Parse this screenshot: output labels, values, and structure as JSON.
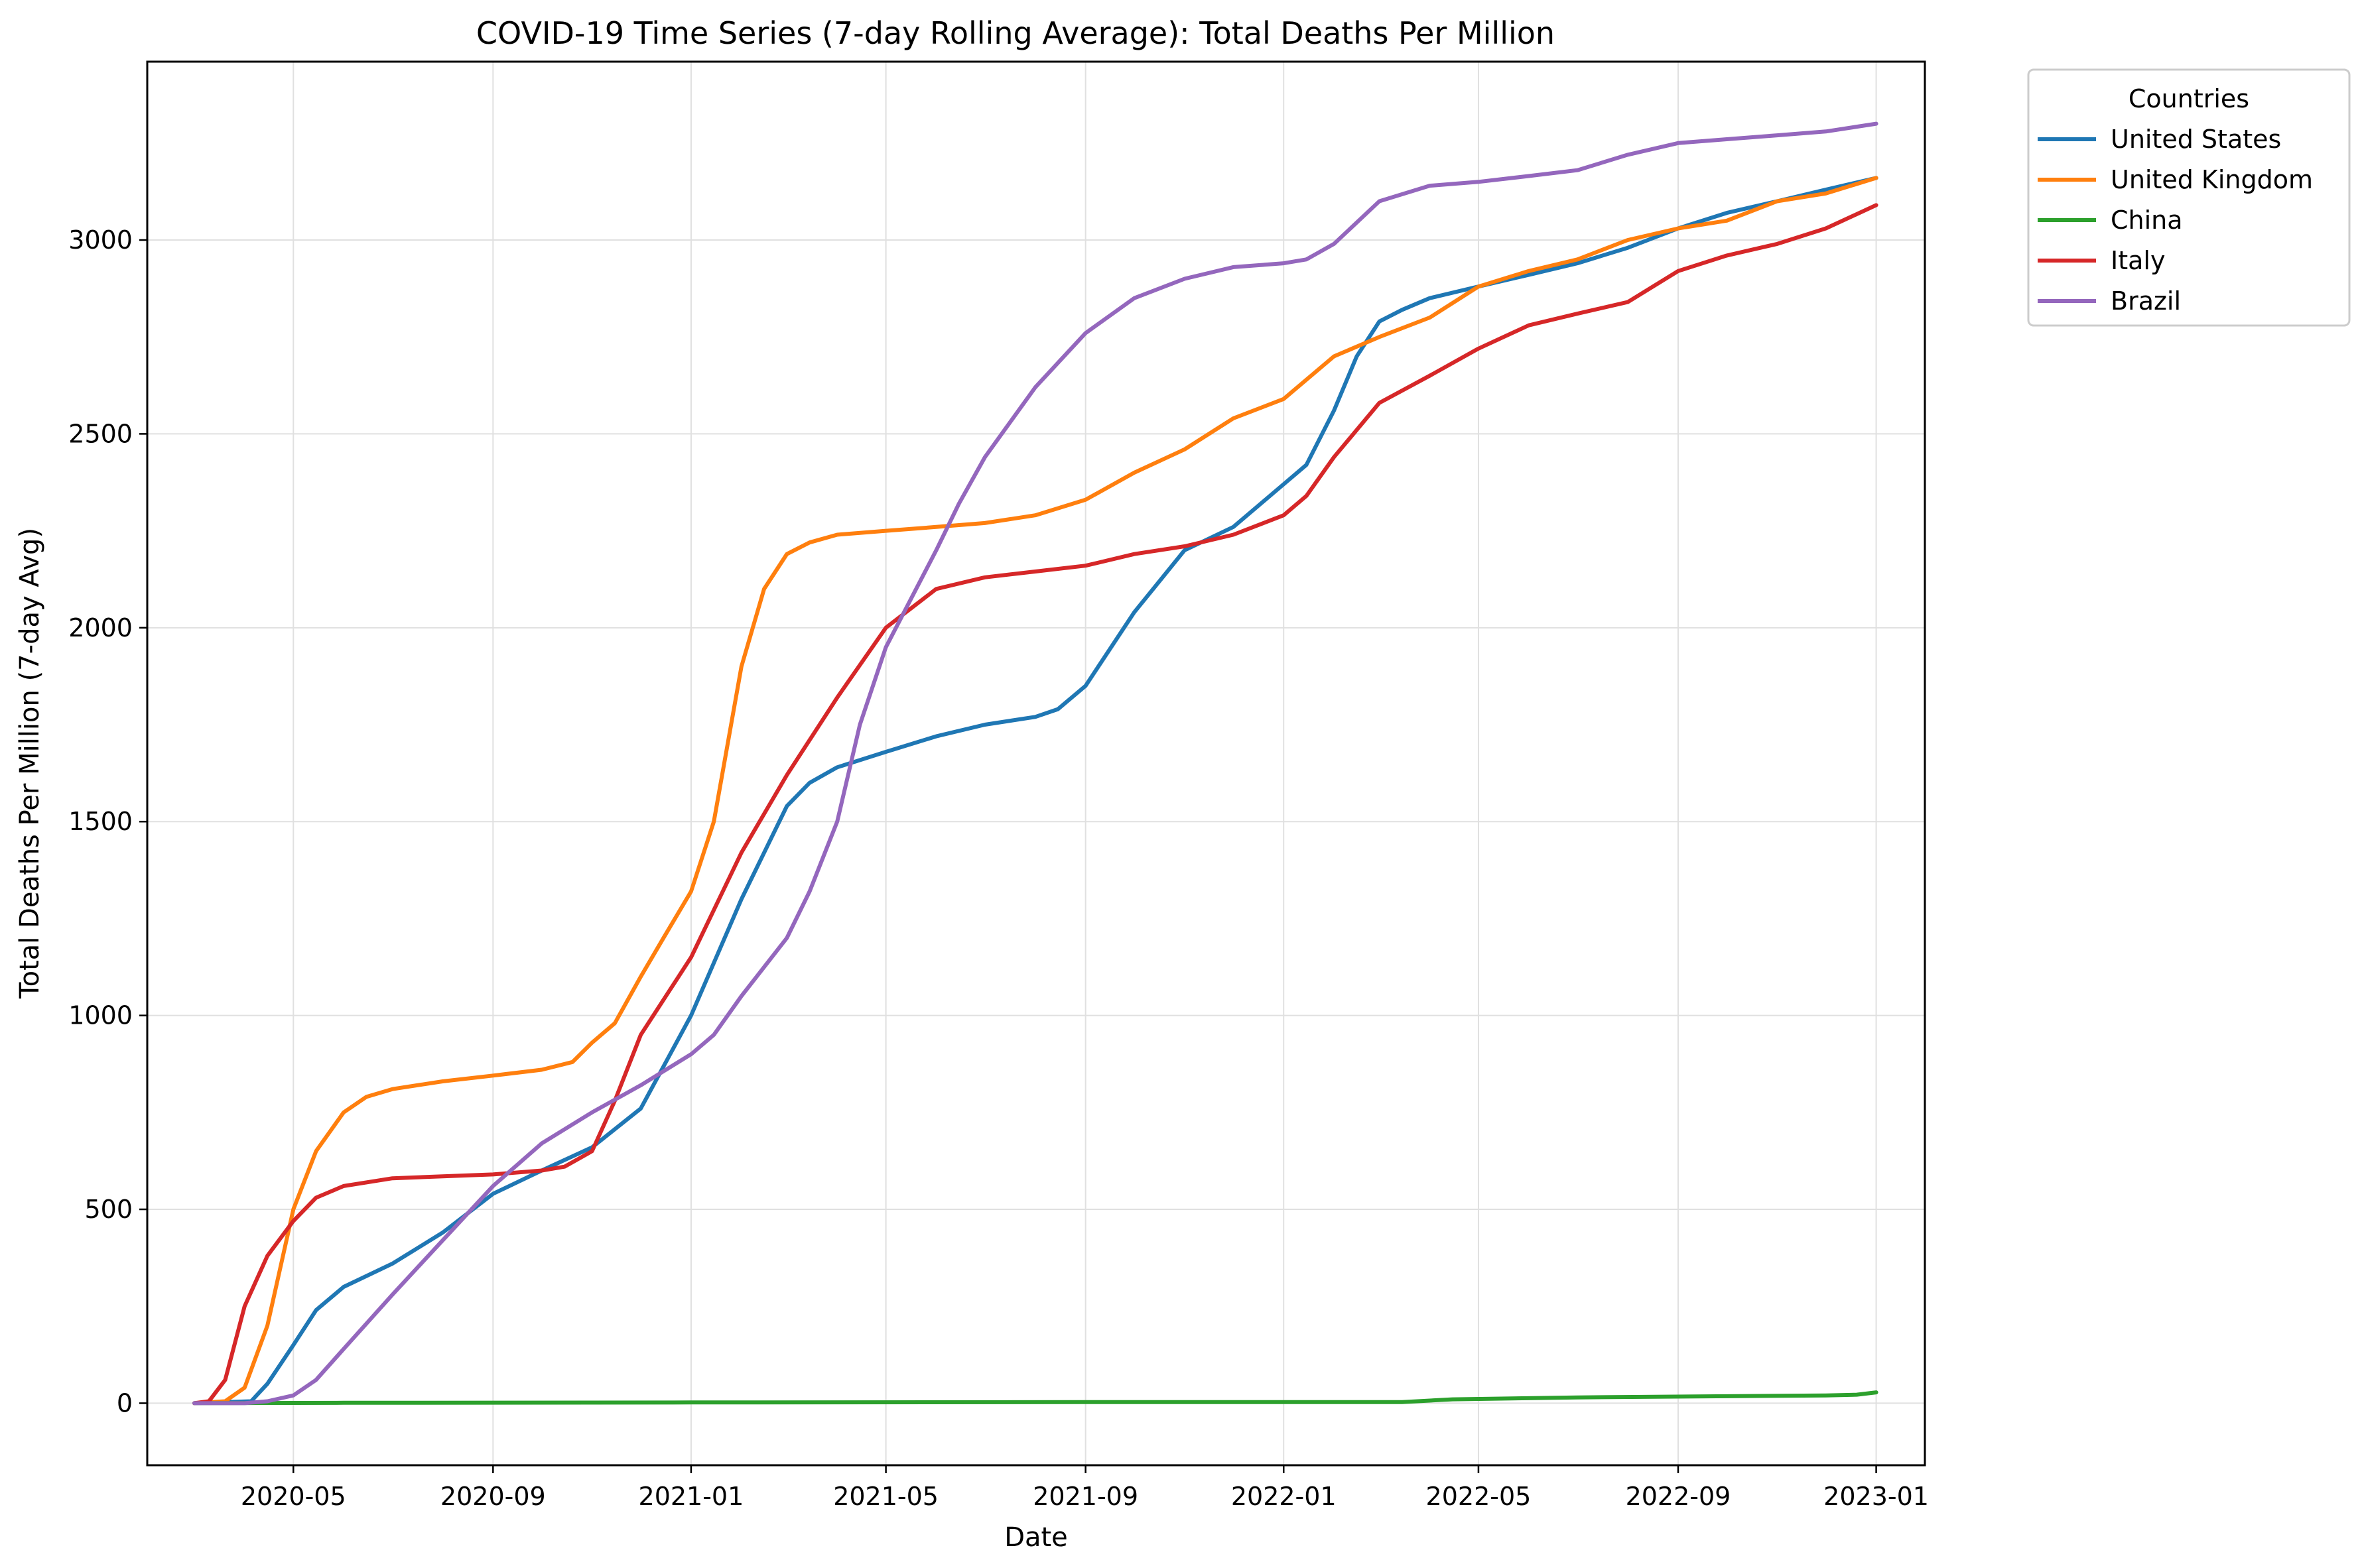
{
  "chart_data": {
    "type": "line",
    "title": "COVID-19 Time Series (7-day Rolling Average): Total Deaths Per Million",
    "xlabel": "Date",
    "ylabel": "Total Deaths Per Million (7-day Avg)",
    "ylim": [
      -160,
      3460
    ],
    "xlim": [
      "2020-02-01",
      "2023-01-31"
    ],
    "grid": true,
    "x_ticks": [
      "2020-05",
      "2020-09",
      "2021-01",
      "2021-05",
      "2021-09",
      "2022-01",
      "2022-05",
      "2022-09",
      "2023-01"
    ],
    "y_ticks": [
      0,
      500,
      1000,
      1500,
      2000,
      2500,
      3000
    ],
    "legend": {
      "title": "Countries",
      "position": "outside-top-right"
    },
    "series": [
      {
        "name": "United States",
        "color": "#1f77b4",
        "x": [
          "2020-03-01",
          "2020-04-05",
          "2020-04-15",
          "2020-05-01",
          "2020-05-15",
          "2020-06-01",
          "2020-07-01",
          "2020-08-01",
          "2020-09-01",
          "2020-10-01",
          "2020-11-01",
          "2020-12-01",
          "2021-01-01",
          "2021-02-01",
          "2021-03-01",
          "2021-03-15",
          "2021-04-01",
          "2021-05-01",
          "2021-06-01",
          "2021-07-01",
          "2021-08-01",
          "2021-08-15",
          "2021-09-01",
          "2021-10-01",
          "2021-11-01",
          "2021-12-01",
          "2022-01-01",
          "2022-01-15",
          "2022-02-01",
          "2022-02-15",
          "2022-03-01",
          "2022-03-15",
          "2022-04-01",
          "2022-05-01",
          "2022-06-01",
          "2022-07-01",
          "2022-08-01",
          "2022-09-01",
          "2022-10-01",
          "2022-11-01",
          "2022-12-01",
          "2023-01-01"
        ],
        "y": [
          0,
          5,
          50,
          150,
          240,
          300,
          360,
          440,
          540,
          600,
          660,
          760,
          1000,
          1300,
          1540,
          1600,
          1640,
          1680,
          1720,
          1750,
          1770,
          1790,
          1850,
          2040,
          2200,
          2260,
          2370,
          2420,
          2560,
          2700,
          2790,
          2820,
          2850,
          2880,
          2910,
          2940,
          2980,
          3030,
          3070,
          3100,
          3130,
          3160
        ]
      },
      {
        "name": "United Kingdom",
        "color": "#ff7f0e",
        "x": [
          "2020-03-01",
          "2020-03-20",
          "2020-04-01",
          "2020-04-15",
          "2020-05-01",
          "2020-05-15",
          "2020-06-01",
          "2020-06-15",
          "2020-07-01",
          "2020-08-01",
          "2020-09-01",
          "2020-10-01",
          "2020-10-20",
          "2020-11-01",
          "2020-11-15",
          "2020-12-01",
          "2020-12-15",
          "2021-01-01",
          "2021-01-15",
          "2021-02-01",
          "2021-02-15",
          "2021-03-01",
          "2021-03-15",
          "2021-04-01",
          "2021-05-01",
          "2021-06-01",
          "2021-07-01",
          "2021-08-01",
          "2021-09-01",
          "2021-10-01",
          "2021-11-01",
          "2021-12-01",
          "2022-01-01",
          "2022-02-01",
          "2022-03-01",
          "2022-04-01",
          "2022-05-01",
          "2022-06-01",
          "2022-07-01",
          "2022-08-01",
          "2022-09-01",
          "2022-10-01",
          "2022-11-01",
          "2022-12-01",
          "2023-01-01"
        ],
        "y": [
          0,
          5,
          40,
          200,
          500,
          650,
          750,
          790,
          810,
          830,
          845,
          860,
          880,
          930,
          980,
          1100,
          1200,
          1320,
          1500,
          1900,
          2100,
          2190,
          2220,
          2240,
          2250,
          2260,
          2270,
          2290,
          2330,
          2400,
          2460,
          2540,
          2590,
          2700,
          2750,
          2800,
          2880,
          2920,
          2950,
          3000,
          3030,
          3050,
          3100,
          3120,
          3160
        ]
      },
      {
        "name": "China",
        "color": "#2ca02c",
        "x": [
          "2020-03-01",
          "2020-06-01",
          "2021-01-01",
          "2021-09-01",
          "2022-01-01",
          "2022-03-15",
          "2022-04-15",
          "2022-07-01",
          "2022-12-01",
          "2022-12-20",
          "2023-01-01"
        ],
        "y": [
          0,
          1,
          2,
          3,
          3,
          3,
          10,
          15,
          20,
          22,
          28
        ]
      },
      {
        "name": "Italy",
        "color": "#d62728",
        "x": [
          "2020-03-01",
          "2020-03-10",
          "2020-03-20",
          "2020-04-01",
          "2020-04-15",
          "2020-05-01",
          "2020-05-15",
          "2020-06-01",
          "2020-07-01",
          "2020-08-01",
          "2020-09-01",
          "2020-10-01",
          "2020-10-15",
          "2020-11-01",
          "2020-11-15",
          "2020-12-01",
          "2021-01-01",
          "2021-02-01",
          "2021-03-01",
          "2021-04-01",
          "2021-05-01",
          "2021-06-01",
          "2021-07-01",
          "2021-08-01",
          "2021-09-01",
          "2021-10-01",
          "2021-11-01",
          "2021-12-01",
          "2022-01-01",
          "2022-01-15",
          "2022-02-01",
          "2022-03-01",
          "2022-04-01",
          "2022-05-01",
          "2022-06-01",
          "2022-07-01",
          "2022-08-01",
          "2022-09-01",
          "2022-10-01",
          "2022-11-01",
          "2022-12-01",
          "2023-01-01"
        ],
        "y": [
          0,
          5,
          60,
          250,
          380,
          470,
          530,
          560,
          580,
          585,
          590,
          600,
          610,
          650,
          780,
          950,
          1150,
          1420,
          1620,
          1820,
          2000,
          2100,
          2130,
          2145,
          2160,
          2190,
          2210,
          2240,
          2290,
          2340,
          2440,
          2580,
          2650,
          2720,
          2780,
          2810,
          2840,
          2920,
          2960,
          2990,
          3030,
          3090
        ]
      },
      {
        "name": "Brazil",
        "color": "#9467bd",
        "x": [
          "2020-03-01",
          "2020-04-01",
          "2020-04-15",
          "2020-05-01",
          "2020-05-15",
          "2020-06-01",
          "2020-07-01",
          "2020-08-01",
          "2020-09-01",
          "2020-10-01",
          "2020-11-01",
          "2020-12-01",
          "2021-01-01",
          "2021-01-15",
          "2021-02-01",
          "2021-03-01",
          "2021-03-15",
          "2021-04-01",
          "2021-04-15",
          "2021-05-01",
          "2021-06-01",
          "2021-06-15",
          "2021-07-01",
          "2021-08-01",
          "2021-09-01",
          "2021-10-01",
          "2021-11-01",
          "2021-12-01",
          "2022-01-01",
          "2022-01-15",
          "2022-02-01",
          "2022-03-01",
          "2022-04-01",
          "2022-05-01",
          "2022-06-01",
          "2022-07-01",
          "2022-08-01",
          "2022-09-01",
          "2022-10-01",
          "2022-11-01",
          "2022-12-01",
          "2023-01-01"
        ],
        "y": [
          0,
          0,
          5,
          20,
          60,
          140,
          280,
          420,
          560,
          670,
          750,
          820,
          900,
          950,
          1050,
          1200,
          1320,
          1500,
          1750,
          1950,
          2200,
          2320,
          2440,
          2620,
          2760,
          2850,
          2900,
          2930,
          2940,
          2950,
          2990,
          3100,
          3140,
          3150,
          3165,
          3180,
          3220,
          3250,
          3260,
          3270,
          3280,
          3300
        ]
      }
    ]
  }
}
